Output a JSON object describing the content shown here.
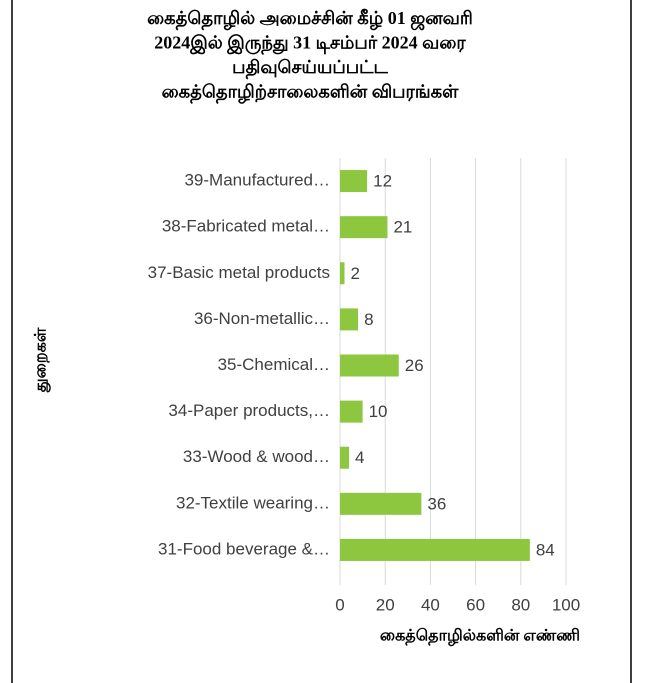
{
  "chart_data": {
    "type": "bar",
    "orientation": "horizontal",
    "title": [
      "கைத்தொழில் அமைச்சின் கீழ் 01 ஜனவரி",
      "2024இல் இருந்து 31 டிசம்பர் 2024 வரை",
      "பதிவுசெய்யப்பட்ட",
      "கைத்தொழிற்சாலைகளின் விபரங்கள்"
    ],
    "x_label": "கைத்தொழில்களின் எண்ணி",
    "y_label": "துறைகள்",
    "categories": [
      "39-Manufactured…",
      "38-Fabricated metal…",
      "37-Basic metal products",
      "36-Non-metallic…",
      "35-Chemical…",
      "34-Paper products,…",
      "33-Wood & wood…",
      "32-Textile wearing…",
      "31-Food beverage &…"
    ],
    "values": [
      12,
      21,
      2,
      8,
      26,
      10,
      4,
      36,
      84
    ],
    "color": "#8dc63f",
    "xlim": [
      0,
      100
    ],
    "xticks": [
      0,
      20,
      40,
      60,
      80,
      100
    ],
    "grid": true
  }
}
